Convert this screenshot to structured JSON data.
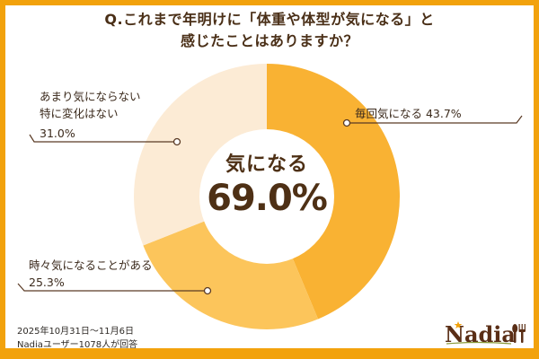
{
  "title": {
    "line1": "Q.これまで年明けに「体重や体型が気になる」と",
    "line2": "感じたことはありますか？"
  },
  "center": {
    "label": "気になる",
    "value": "69.0%"
  },
  "labels": {
    "every_time": {
      "text": "毎回気になる  43.7%"
    },
    "sometimes": {
      "line1": "時々気になることがある",
      "line2": "25.3%"
    },
    "not_really": {
      "line1": "あまり気にならない",
      "line2": "特に変化はない",
      "line3": "31.0%"
    }
  },
  "footer": {
    "period": "2025年10月31日～11月6日",
    "respondents": "Nadiaユーザー1078人が回答"
  },
  "logo": {
    "text": "Nadia"
  },
  "colors": {
    "frame": "#f2a20c",
    "every_time": "#f9b233",
    "sometimes": "#fcc55b",
    "not_really": "#fcebd5",
    "text_dark": "#4a2f17"
  },
  "chart_data": {
    "type": "pie",
    "variant": "donut",
    "title": "Q.これまで年明けに「体重や体型が気になる」と感じたことはありますか？",
    "categories": [
      "毎回気になる",
      "時々気になることがある",
      "あまり気にならない 特に変化はない"
    ],
    "values": [
      43.7,
      25.3,
      31.0
    ],
    "unit": "%",
    "center_annotation": {
      "label": "気になる",
      "value": 69.0
    },
    "start_angle": "12 o'clock, clockwise",
    "legend": "leader-line labels",
    "notes": [
      "2025年10月31日～11月6日",
      "Nadiaユーザー1078人が回答"
    ]
  }
}
